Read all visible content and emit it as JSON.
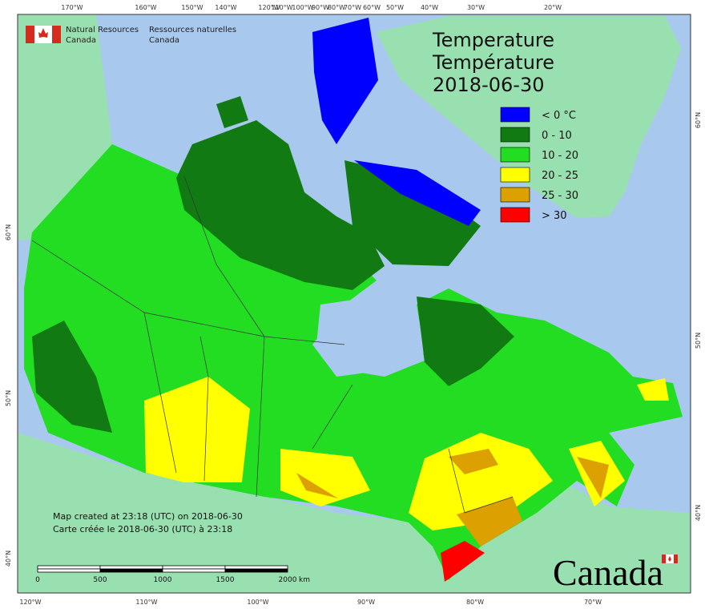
{
  "header": {
    "org_en_line1": "Natural Resources",
    "org_en_line2": "Canada",
    "org_fr_line1": "Ressources naturelles",
    "org_fr_line2": "Canada"
  },
  "title": {
    "en": "Temperature",
    "fr": "Température",
    "date": "2018-06-30"
  },
  "legend": [
    {
      "label": "< 0 °C",
      "color": "#0000ff"
    },
    {
      "label": "0 - 10",
      "color": "#127a12"
    },
    {
      "label": "10 - 20",
      "color": "#22dd22"
    },
    {
      "label": "20 - 25",
      "color": "#ffff00"
    },
    {
      "label": "25 - 30",
      "color": "#dca000"
    },
    {
      "label": "> 30",
      "color": "#ff0000"
    }
  ],
  "longitude_top": [
    "170°W",
    "160°W",
    "150°W",
    "140°W",
    "120°W",
    "110°W",
    "100°W",
    "90°W",
    "80°W",
    "70°W",
    "60°W",
    "50°W",
    "40°W",
    "30°W",
    "20°W"
  ],
  "longitude_bottom": [
    "120°W",
    "110°W",
    "100°W",
    "90°W",
    "80°W",
    "70°W"
  ],
  "latitude_left": [
    "60°N",
    "50°N",
    "40°N"
  ],
  "latitude_right": [
    "60°N",
    "50°N",
    "40°N"
  ],
  "footer": {
    "created_en": "Map created at 23:18 (UTC) on 2018-06-30",
    "created_fr": "Carte créée le 2018-06-30 (UTC) à 23:18"
  },
  "scale_bar": {
    "ticks": [
      "0",
      "500",
      "1000",
      "1500",
      "2000"
    ],
    "unit": "km"
  },
  "wordmark": "Canada"
}
